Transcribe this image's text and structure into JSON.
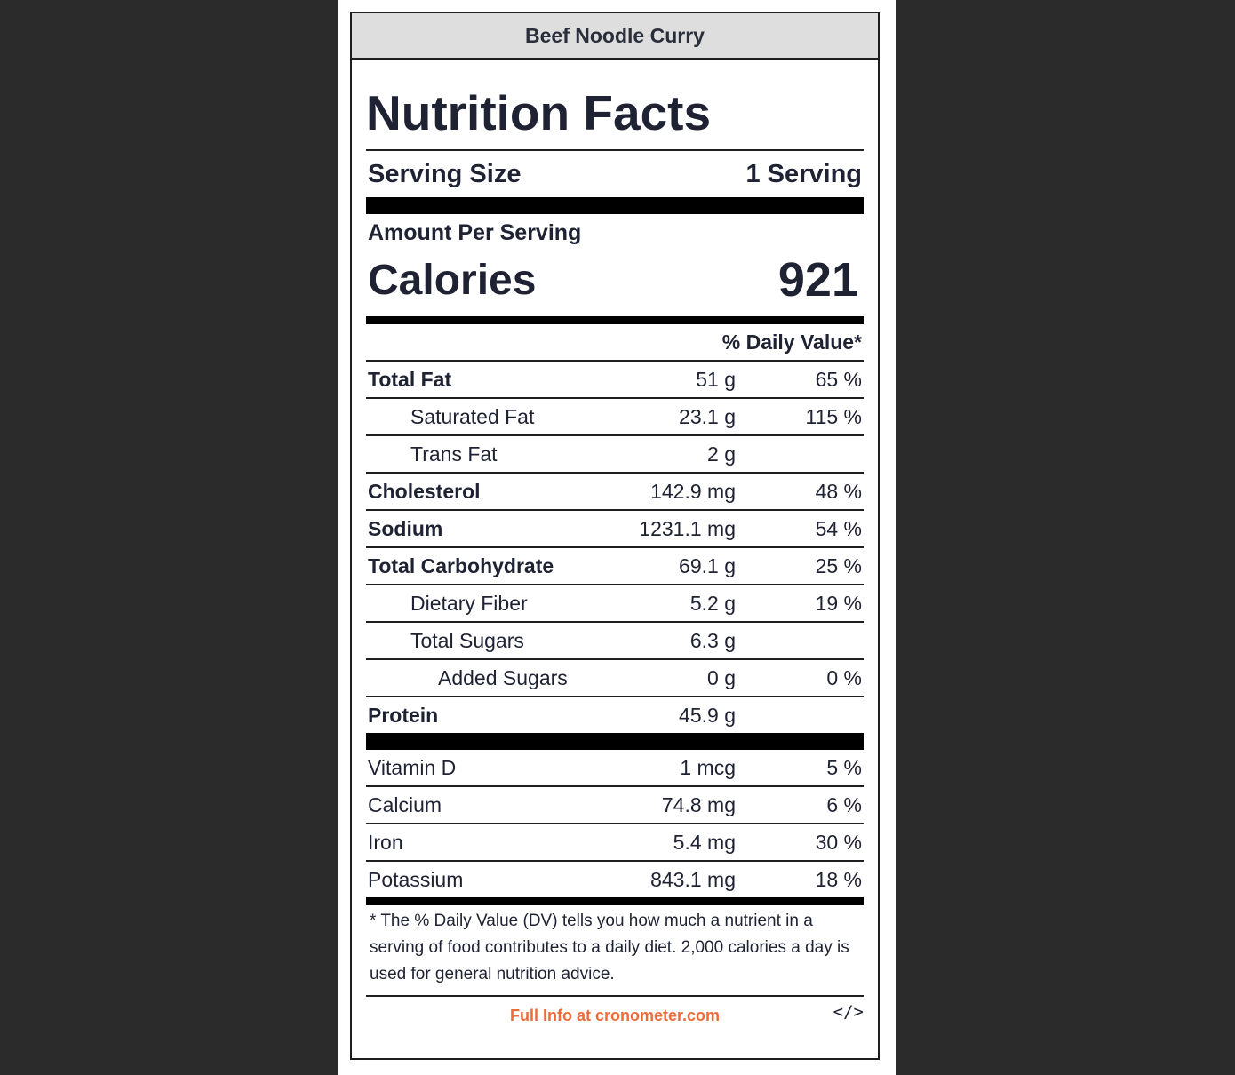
{
  "title": "Beef Noodle Curry",
  "heading": "Nutrition Facts",
  "serving": {
    "label": "Serving Size",
    "value": "1 Serving"
  },
  "amount_per_serving": "Amount Per Serving",
  "calories": {
    "label": "Calories",
    "value": "921"
  },
  "daily_value_header": "% Daily Value*",
  "nutrients": [
    {
      "name": "Total Fat",
      "amount": "51 g",
      "dv": "65 %"
    },
    {
      "name": "Saturated Fat",
      "amount": "23.1 g",
      "dv": "115 %"
    },
    {
      "name": "Trans Fat",
      "amount": "2 g",
      "dv": ""
    },
    {
      "name": "Cholesterol",
      "amount": "142.9 mg",
      "dv": "48 %"
    },
    {
      "name": "Sodium",
      "amount": "1231.1 mg",
      "dv": "54 %"
    },
    {
      "name": "Total Carbohydrate",
      "amount": "69.1 g",
      "dv": "25 %"
    },
    {
      "name": "Dietary Fiber",
      "amount": "5.2 g",
      "dv": "19 %"
    },
    {
      "name": "Total Sugars",
      "amount": "6.3 g",
      "dv": ""
    },
    {
      "name": "Added Sugars",
      "amount": "0 g",
      "dv": "0 %"
    },
    {
      "name": "Protein",
      "amount": "45.9 g",
      "dv": ""
    }
  ],
  "vitamins": [
    {
      "name": "Vitamin D",
      "amount": "1 mcg",
      "dv": "5 %"
    },
    {
      "name": "Calcium",
      "amount": "74.8 mg",
      "dv": "6 %"
    },
    {
      "name": "Iron",
      "amount": "5.4 mg",
      "dv": "30 %"
    },
    {
      "name": "Potassium",
      "amount": "843.1 mg",
      "dv": "18 %"
    }
  ],
  "footnote": "* The % Daily Value (DV) tells you how much a nutrient in a serving of food contributes to a daily diet. 2,000 calories a day is used for general nutrition advice.",
  "footer": {
    "link_text": "Full Info at cronometer.com",
    "embed_label": "</>"
  },
  "colors": {
    "link": "#ec6b3b",
    "text": "#1e2233",
    "background": "#2b2b2b"
  }
}
